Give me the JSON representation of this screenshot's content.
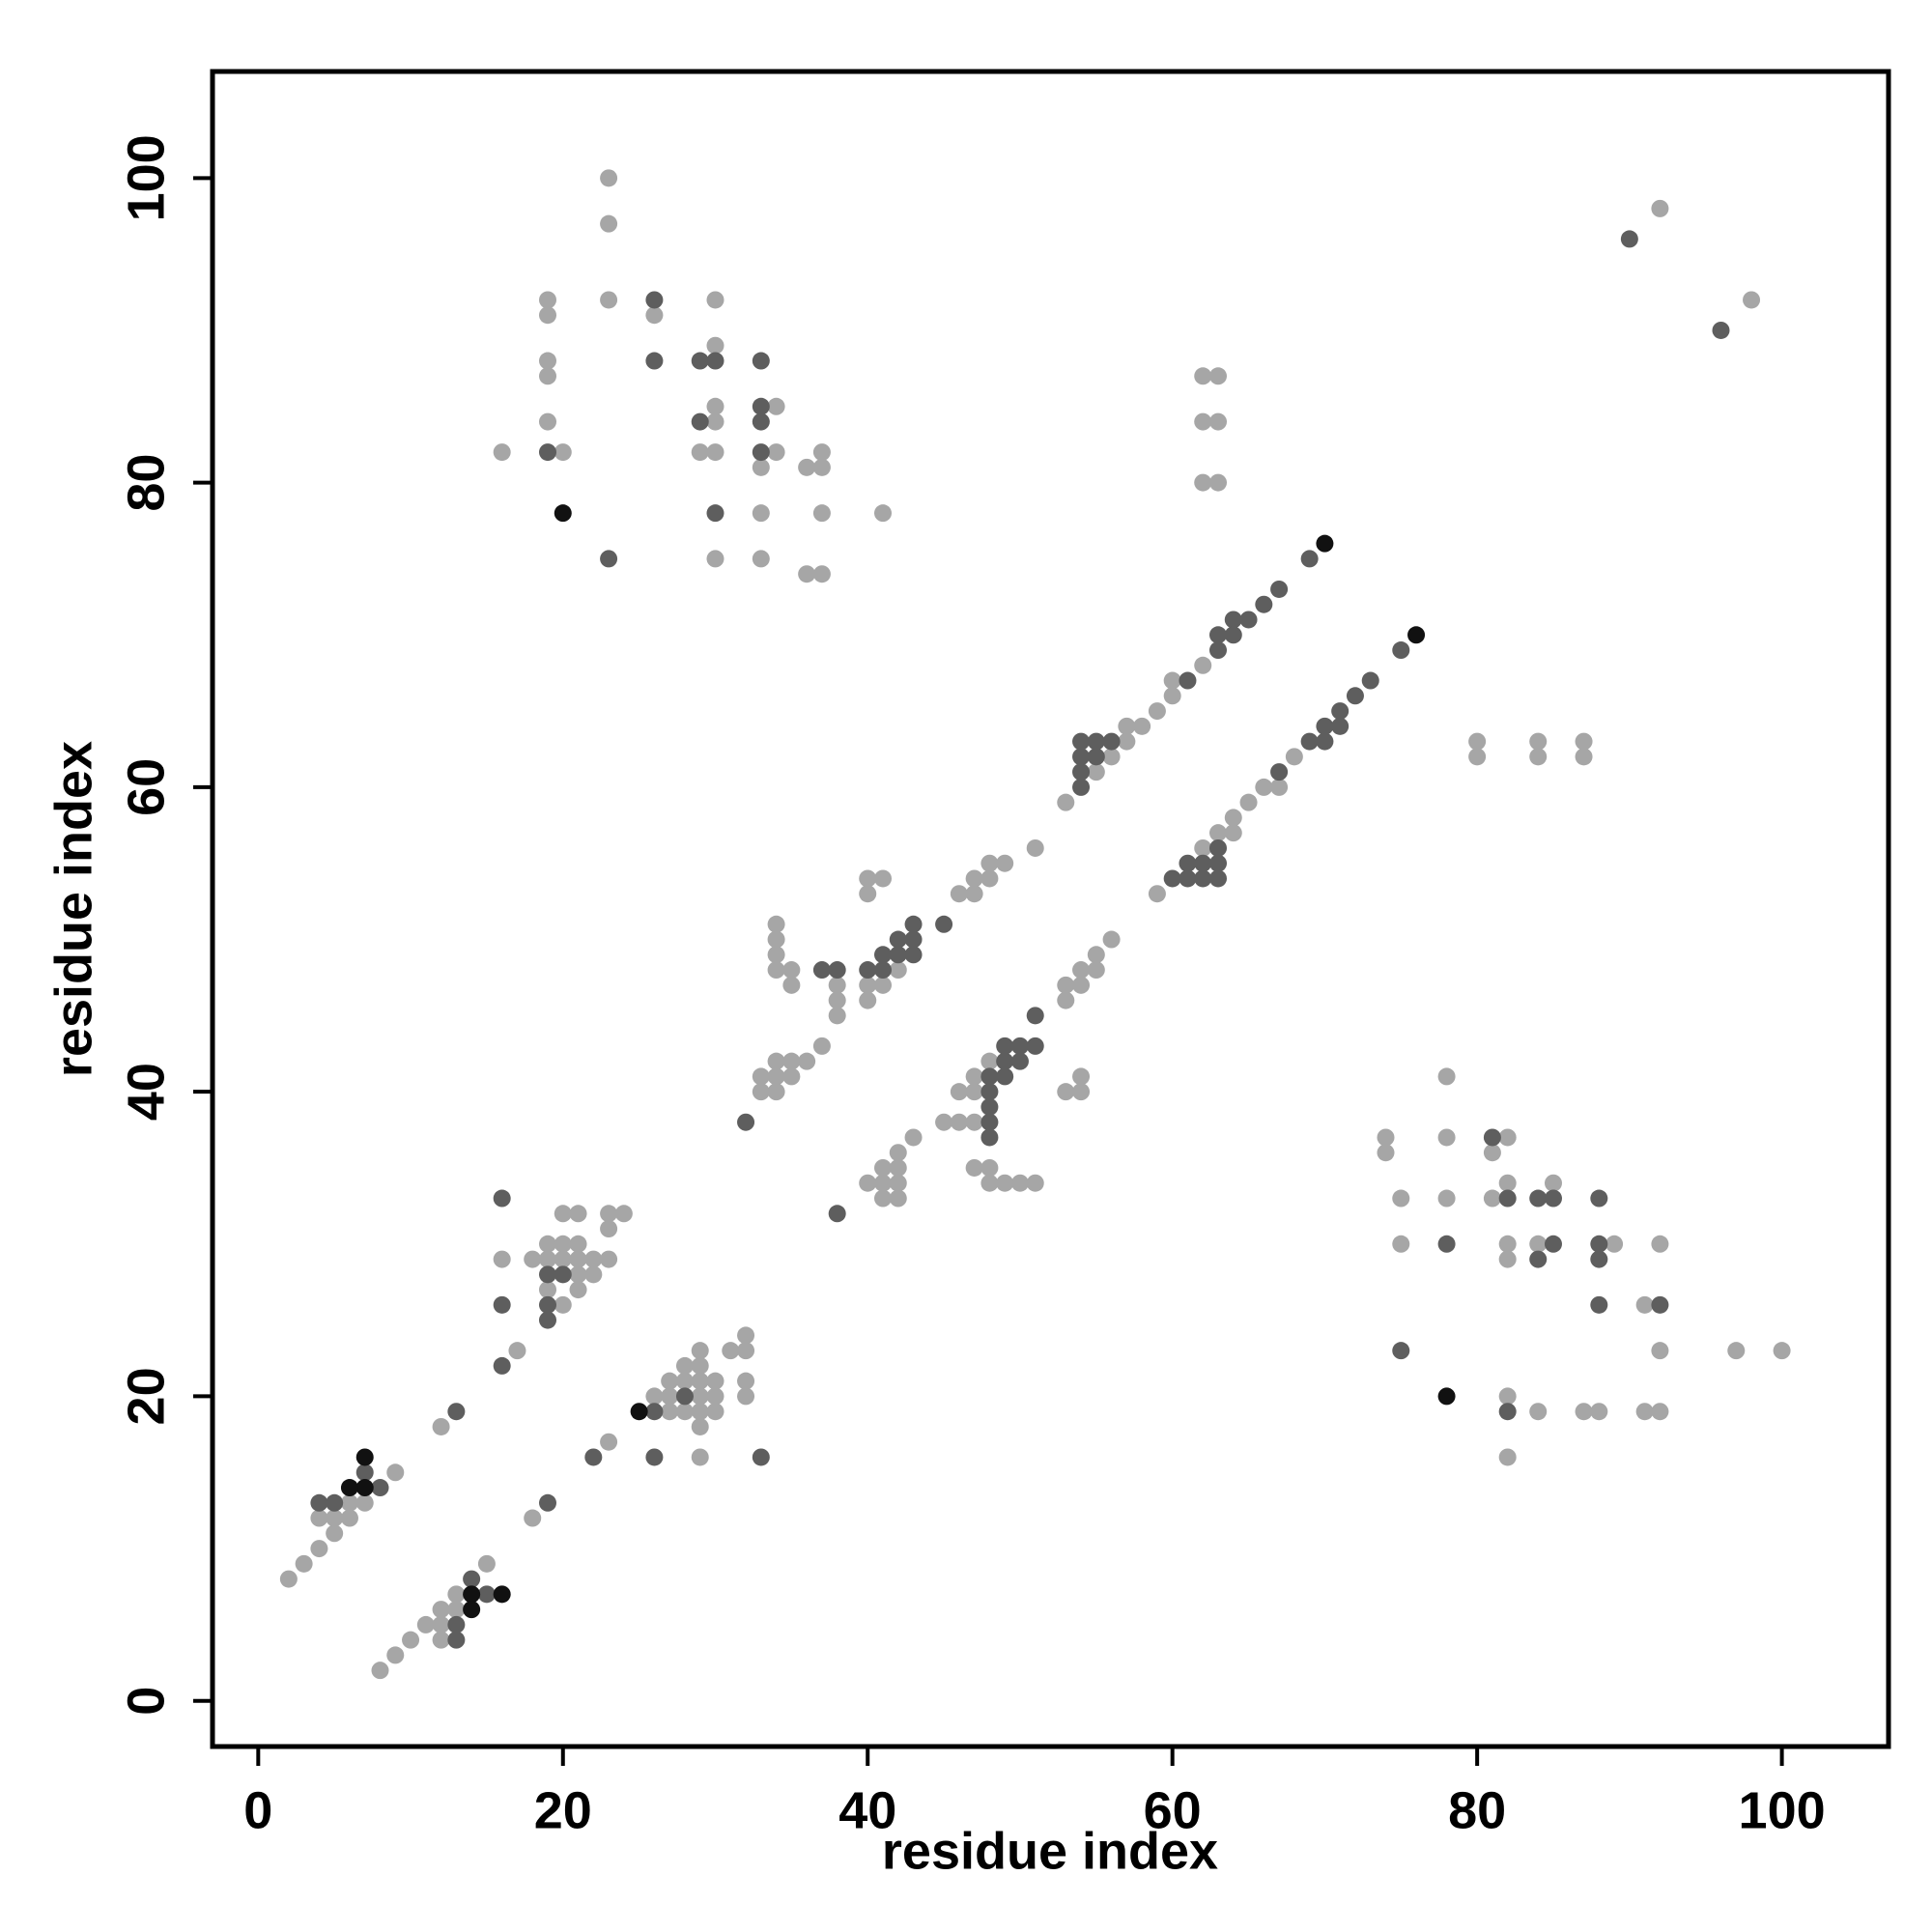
{
  "chart_data": {
    "type": "scatter",
    "xlabel": "residue index",
    "ylabel": "residue index",
    "xlim": [
      -3,
      107
    ],
    "ylim": [
      -3,
      107
    ],
    "xticks": [
      0,
      20,
      40,
      60,
      80,
      100
    ],
    "yticks": [
      0,
      20,
      40,
      60,
      80,
      100
    ],
    "series": [
      {
        "color": "#a6a6a6",
        "x": [
          19,
          19,
          19,
          19,
          19,
          20,
          16,
          23,
          23,
          23,
          26,
          29,
          30,
          30,
          30,
          30,
          30,
          30,
          34,
          33,
          34,
          33,
          33,
          36,
          37,
          37,
          37,
          36,
          37,
          41,
          92,
          98,
          62,
          63,
          62,
          63,
          62,
          63,
          62,
          60,
          60,
          59,
          58,
          57,
          57,
          56,
          55,
          53,
          51,
          49,
          48,
          48,
          47,
          47,
          46,
          42,
          41,
          40,
          40,
          38,
          38,
          38,
          41,
          40,
          40,
          34,
          34,
          34,
          34,
          35,
          35,
          37,
          36,
          35,
          34,
          33,
          34,
          35,
          33,
          34,
          16,
          17,
          19,
          20,
          21,
          20,
          21,
          23,
          24,
          18,
          19,
          20,
          21,
          22,
          23,
          23,
          21,
          22,
          19,
          21,
          20,
          12,
          9,
          7,
          6,
          4,
          5,
          6,
          5,
          4,
          3,
          2,
          8,
          9,
          10,
          11,
          12,
          12,
          12,
          13,
          13,
          15,
          18,
          23,
          29,
          27,
          28,
          27,
          26,
          29,
          30,
          27,
          28,
          29,
          30,
          28,
          29,
          29,
          29,
          29,
          30,
          31,
          32,
          32,
          32,
          32,
          41,
          42,
          40,
          41,
          42,
          41,
          42,
          42,
          43,
          45,
          46,
          47,
          47,
          48,
          48,
          49,
          50,
          51,
          46,
          47,
          47,
          48,
          53,
          54,
          54,
          53,
          53,
          54,
          55,
          54,
          55,
          56,
          59,
          62,
          63,
          64,
          64,
          65,
          66,
          67,
          68,
          80,
          80,
          84,
          84,
          87,
          87,
          74,
          74,
          75,
          75,
          78,
          78,
          78,
          81,
          82,
          81,
          82,
          82,
          82,
          82,
          82,
          85,
          84,
          84,
          89,
          87,
          88,
          91,
          92,
          92,
          91,
          92,
          97,
          100
        ],
        "values": [
          92,
          91,
          88,
          87,
          84,
          82,
          82,
          100,
          97,
          92,
          91,
          82,
          92,
          89,
          85,
          84,
          82,
          75,
          85,
          81,
          82,
          78,
          75,
          81,
          82,
          81,
          78,
          74,
          74,
          78,
          98,
          92,
          87,
          87,
          84,
          84,
          80,
          80,
          68,
          67,
          66,
          65,
          64,
          64,
          63,
          62,
          61,
          59,
          56,
          55,
          55,
          54,
          54,
          53,
          53,
          48,
          47,
          47,
          46,
          47,
          46,
          45,
          54,
          54,
          53,
          51,
          50,
          49,
          48,
          48,
          47,
          43,
          42,
          42,
          42,
          41,
          41,
          41,
          40,
          40,
          29,
          23,
          30,
          30,
          30,
          32,
          32,
          32,
          32,
          29,
          29,
          29,
          29,
          29,
          29,
          31,
          28,
          28,
          27,
          27,
          26,
          18,
          15,
          13,
          13,
          12,
          12,
          12,
          11,
          10,
          9,
          8,
          2,
          3,
          4,
          5,
          5,
          4,
          6,
          6,
          7,
          9,
          12,
          17,
          16,
          19,
          19,
          20,
          20,
          20,
          20,
          21,
          21,
          21,
          21,
          22,
          22,
          23,
          18,
          19,
          19,
          23,
          23,
          24,
          21,
          20,
          33,
          33,
          34,
          34,
          34,
          35,
          35,
          36,
          37,
          38,
          38,
          38,
          35,
          35,
          34,
          34,
          34,
          34,
          40,
          40,
          41,
          42,
          40,
          40,
          41,
          46,
          47,
          47,
          48,
          48,
          49,
          50,
          53,
          56,
          57,
          57,
          58,
          59,
          60,
          60,
          62,
          63,
          62,
          63,
          62,
          63,
          62,
          37,
          36,
          33,
          30,
          41,
          37,
          33,
          36,
          37,
          33,
          34,
          30,
          29,
          20,
          16,
          34,
          30,
          19,
          30,
          19,
          19,
          26,
          30,
          23,
          19,
          19,
          23,
          23
        ]
      },
      {
        "color": "#5e5e5e",
        "x": [
          19,
          23,
          26,
          26,
          29,
          29,
          30,
          30,
          33,
          33,
          33,
          33,
          90,
          96,
          69,
          67,
          66,
          65,
          64,
          64,
          63,
          63,
          61,
          55,
          54,
          56,
          55,
          54,
          54,
          54,
          45,
          43,
          42,
          43,
          42,
          43,
          41,
          41,
          40,
          38,
          37,
          32,
          16,
          16,
          16,
          19,
          20,
          19,
          19,
          13,
          7,
          8,
          5,
          4,
          13,
          13,
          14,
          15,
          19,
          22,
          26,
          33,
          26,
          28,
          38,
          48,
          48,
          48,
          48,
          48,
          49,
          49,
          50,
          49,
          50,
          51,
          51,
          60,
          61,
          62,
          63,
          61,
          62,
          63,
          63,
          67,
          69,
          70,
          70,
          71,
          71,
          72,
          73,
          75,
          75,
          78,
          81,
          82,
          82,
          84,
          85,
          85,
          84,
          88,
          88,
          88,
          88,
          92
        ],
        "values": [
          82,
          75,
          92,
          88,
          88,
          84,
          88,
          78,
          88,
          85,
          84,
          82,
          96,
          90,
          75,
          73,
          72,
          71,
          71,
          70,
          70,
          69,
          67,
          63,
          63,
          63,
          62,
          62,
          61,
          60,
          51,
          51,
          50,
          50,
          49,
          49,
          49,
          48,
          48,
          48,
          48,
          38,
          33,
          26,
          22,
          28,
          28,
          26,
          25,
          19,
          15,
          14,
          13,
          13,
          4,
          5,
          8,
          7,
          13,
          16,
          16,
          16,
          19,
          20,
          32,
          38,
          37,
          39,
          40,
          41,
          41,
          42,
          42,
          43,
          43,
          43,
          45,
          54,
          54,
          54,
          54,
          55,
          55,
          55,
          56,
          61,
          63,
          63,
          64,
          64,
          65,
          66,
          67,
          69,
          23,
          30,
          37,
          33,
          19,
          33,
          33,
          30,
          29,
          33,
          30,
          29,
          26,
          26
        ]
      },
      {
        "color": "#111111",
        "x": [
          20,
          70,
          7,
          7,
          6,
          14,
          16,
          14,
          25,
          76,
          78
        ],
        "values": [
          78,
          76,
          16,
          14,
          14,
          7,
          7,
          6,
          19,
          70,
          20
        ]
      }
    ]
  }
}
